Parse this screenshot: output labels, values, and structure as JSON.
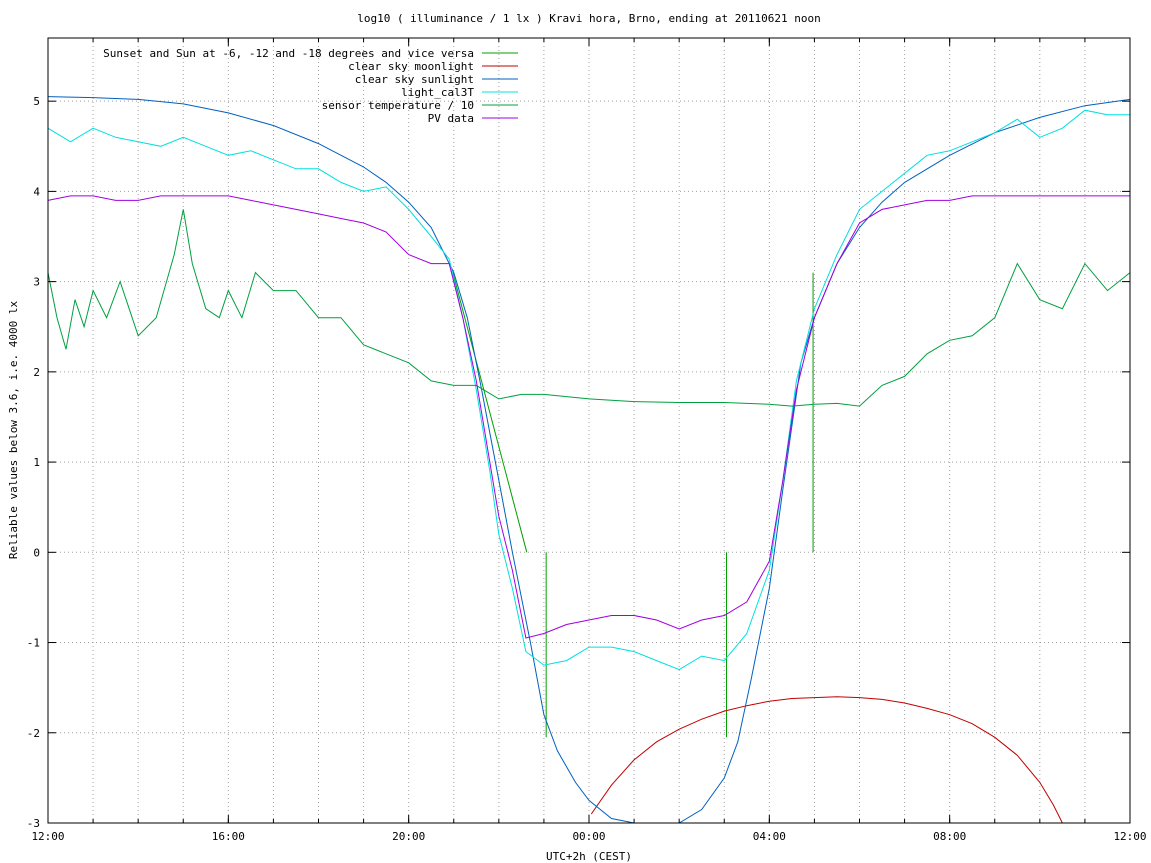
{
  "chart_data": {
    "type": "line",
    "title": "log10 ( illuminance / 1 lx ) Kravi hora, Brno, ending at 20110621 noon",
    "xlabel": "UTC+2h (CEST)",
    "ylabel": "Reliable values below 3.6, i.e. 4000 lx",
    "x_unit": "hours",
    "xlim": [
      12,
      36
    ],
    "ylim": [
      -3,
      5.7
    ],
    "x_tick_values": [
      12,
      16,
      20,
      24,
      28,
      32,
      36
    ],
    "x_tick_labels": [
      "12:00",
      "16:00",
      "20:00",
      "00:00",
      "04:00",
      "08:00",
      "12:00"
    ],
    "x_minor_step": 1,
    "y_ticks": [
      -3,
      -2,
      -1,
      0,
      1,
      2,
      3,
      4,
      5
    ],
    "grid": true,
    "legend_position": "top-left",
    "series": [
      {
        "name": "Sunset and Sun at -6, -12 and -18 degrees and vice versa",
        "color": "#00a000",
        "style": "impulses",
        "points": [
          [
            20.98,
            3.1
          ],
          [
            22.62,
            0.0
          ],
          [
            23.05,
            -2.05
          ],
          [
            23.05,
            0.0
          ],
          [
            27.05,
            -2.05
          ],
          [
            27.05,
            0.0
          ],
          [
            28.97,
            3.1
          ],
          [
            28.97,
            0.0
          ]
        ]
      },
      {
        "name": "clear sky moonlight",
        "color": "#c00000",
        "points": [
          [
            24.05,
            -2.9
          ],
          [
            24.5,
            -2.58
          ],
          [
            25.0,
            -2.3
          ],
          [
            25.5,
            -2.1
          ],
          [
            26.0,
            -1.96
          ],
          [
            26.5,
            -1.85
          ],
          [
            27.0,
            -1.76
          ],
          [
            27.5,
            -1.7
          ],
          [
            28.0,
            -1.65
          ],
          [
            28.5,
            -1.62
          ],
          [
            29.0,
            -1.61
          ],
          [
            29.5,
            -1.6
          ],
          [
            30.0,
            -1.61
          ],
          [
            30.5,
            -1.63
          ],
          [
            31.0,
            -1.67
          ],
          [
            31.5,
            -1.73
          ],
          [
            32.0,
            -1.8
          ],
          [
            32.5,
            -1.9
          ],
          [
            33.0,
            -2.05
          ],
          [
            33.5,
            -2.25
          ],
          [
            34.0,
            -2.55
          ],
          [
            34.3,
            -2.8
          ],
          [
            34.5,
            -3.0
          ]
        ]
      },
      {
        "name": "clear sky sunlight",
        "color": "#0060c0",
        "points": [
          [
            12.0,
            5.05
          ],
          [
            13.0,
            5.04
          ],
          [
            14.0,
            5.02
          ],
          [
            15.0,
            4.97
          ],
          [
            16.0,
            4.87
          ],
          [
            17.0,
            4.73
          ],
          [
            18.0,
            4.53
          ],
          [
            19.0,
            4.27
          ],
          [
            19.5,
            4.1
          ],
          [
            20.0,
            3.88
          ],
          [
            20.5,
            3.6
          ],
          [
            21.0,
            3.1
          ],
          [
            21.3,
            2.6
          ],
          [
            21.6,
            1.85
          ],
          [
            22.0,
            0.8
          ],
          [
            22.3,
            0.0
          ],
          [
            22.7,
            -1.0
          ],
          [
            23.0,
            -1.8
          ],
          [
            23.3,
            -2.2
          ],
          [
            23.7,
            -2.55
          ],
          [
            24.0,
            -2.75
          ],
          [
            24.5,
            -2.95
          ],
          [
            25.0,
            -3.1
          ],
          [
            25.5,
            -3.12
          ],
          [
            26.0,
            -3.05
          ],
          [
            26.5,
            -2.85
          ],
          [
            27.0,
            -2.5
          ],
          [
            27.3,
            -2.1
          ],
          [
            27.6,
            -1.4
          ],
          [
            28.0,
            -0.4
          ],
          [
            28.3,
            0.7
          ],
          [
            28.7,
            2.1
          ],
          [
            29.0,
            2.6
          ],
          [
            29.5,
            3.2
          ],
          [
            30.0,
            3.6
          ],
          [
            30.5,
            3.88
          ],
          [
            31.0,
            4.1
          ],
          [
            32.0,
            4.4
          ],
          [
            33.0,
            4.65
          ],
          [
            34.0,
            4.82
          ],
          [
            35.0,
            4.95
          ],
          [
            36.0,
            5.02
          ]
        ]
      },
      {
        "name": "light_cal3T",
        "color": "#00e0e0",
        "points": [
          [
            12.0,
            4.7
          ],
          [
            12.5,
            4.55
          ],
          [
            13.0,
            4.7
          ],
          [
            13.5,
            4.6
          ],
          [
            14.0,
            4.55
          ],
          [
            14.5,
            4.5
          ],
          [
            15.0,
            4.6
          ],
          [
            15.5,
            4.5
          ],
          [
            16.0,
            4.4
          ],
          [
            16.5,
            4.45
          ],
          [
            17.0,
            4.35
          ],
          [
            17.5,
            4.25
          ],
          [
            18.0,
            4.25
          ],
          [
            18.5,
            4.1
          ],
          [
            19.0,
            4.0
          ],
          [
            19.5,
            4.05
          ],
          [
            20.0,
            3.8
          ],
          [
            20.5,
            3.5
          ],
          [
            20.9,
            3.25
          ],
          [
            21.2,
            2.6
          ],
          [
            21.5,
            1.8
          ],
          [
            21.8,
            0.9
          ],
          [
            22.0,
            0.2
          ],
          [
            22.3,
            -0.4
          ],
          [
            22.6,
            -1.1
          ],
          [
            23.0,
            -1.25
          ],
          [
            23.5,
            -1.2
          ],
          [
            24.0,
            -1.05
          ],
          [
            24.5,
            -1.05
          ],
          [
            25.0,
            -1.1
          ],
          [
            25.5,
            -1.2
          ],
          [
            26.0,
            -1.3
          ],
          [
            26.5,
            -1.15
          ],
          [
            27.0,
            -1.2
          ],
          [
            27.5,
            -0.9
          ],
          [
            28.0,
            -0.2
          ],
          [
            28.3,
            0.8
          ],
          [
            28.6,
            1.9
          ],
          [
            29.0,
            2.7
          ],
          [
            29.5,
            3.3
          ],
          [
            30.0,
            3.8
          ],
          [
            30.5,
            4.0
          ],
          [
            31.0,
            4.2
          ],
          [
            31.5,
            4.4
          ],
          [
            32.0,
            4.45
          ],
          [
            32.5,
            4.55
          ],
          [
            33.0,
            4.65
          ],
          [
            33.5,
            4.8
          ],
          [
            34.0,
            4.6
          ],
          [
            34.5,
            4.7
          ],
          [
            35.0,
            4.9
          ],
          [
            35.5,
            4.85
          ],
          [
            36.0,
            4.85
          ]
        ]
      },
      {
        "name": "sensor temperature / 10",
        "color": "#00a040",
        "points": [
          [
            12.0,
            3.1
          ],
          [
            12.2,
            2.6
          ],
          [
            12.4,
            2.25
          ],
          [
            12.6,
            2.8
          ],
          [
            12.8,
            2.5
          ],
          [
            13.0,
            2.9
          ],
          [
            13.3,
            2.6
          ],
          [
            13.6,
            3.0
          ],
          [
            14.0,
            2.4
          ],
          [
            14.4,
            2.6
          ],
          [
            14.8,
            3.3
          ],
          [
            15.0,
            3.8
          ],
          [
            15.2,
            3.2
          ],
          [
            15.5,
            2.7
          ],
          [
            15.8,
            2.6
          ],
          [
            16.0,
            2.9
          ],
          [
            16.3,
            2.6
          ],
          [
            16.6,
            3.1
          ],
          [
            17.0,
            2.9
          ],
          [
            17.5,
            2.9
          ],
          [
            18.0,
            2.6
          ],
          [
            18.5,
            2.6
          ],
          [
            19.0,
            2.3
          ],
          [
            19.5,
            2.2
          ],
          [
            20.0,
            2.1
          ],
          [
            20.5,
            1.9
          ],
          [
            21.0,
            1.85
          ],
          [
            21.5,
            1.85
          ],
          [
            22.0,
            1.7
          ],
          [
            22.5,
            1.75
          ],
          [
            23.0,
            1.75
          ],
          [
            24.0,
            1.7
          ],
          [
            25.0,
            1.67
          ],
          [
            26.0,
            1.66
          ],
          [
            27.0,
            1.66
          ],
          [
            28.0,
            1.64
          ],
          [
            28.5,
            1.62
          ],
          [
            29.0,
            1.64
          ],
          [
            29.5,
            1.65
          ],
          [
            30.0,
            1.62
          ],
          [
            30.5,
            1.85
          ],
          [
            31.0,
            1.95
          ],
          [
            31.5,
            2.2
          ],
          [
            32.0,
            2.35
          ],
          [
            32.5,
            2.4
          ],
          [
            33.0,
            2.6
          ],
          [
            33.5,
            3.2
          ],
          [
            34.0,
            2.8
          ],
          [
            34.5,
            2.7
          ],
          [
            35.0,
            3.2
          ],
          [
            35.5,
            2.9
          ],
          [
            36.0,
            3.1
          ]
        ]
      },
      {
        "name": "PV data",
        "color": "#a000e0",
        "points": [
          [
            12.0,
            3.9
          ],
          [
            12.5,
            3.95
          ],
          [
            13.0,
            3.95
          ],
          [
            13.5,
            3.9
          ],
          [
            14.0,
            3.9
          ],
          [
            14.5,
            3.95
          ],
          [
            15.0,
            3.95
          ],
          [
            15.5,
            3.95
          ],
          [
            16.0,
            3.95
          ],
          [
            16.5,
            3.9
          ],
          [
            17.0,
            3.85
          ],
          [
            17.5,
            3.8
          ],
          [
            18.0,
            3.75
          ],
          [
            18.5,
            3.7
          ],
          [
            19.0,
            3.65
          ],
          [
            19.5,
            3.55
          ],
          [
            20.0,
            3.3
          ],
          [
            20.5,
            3.2
          ],
          [
            20.9,
            3.2
          ],
          [
            21.2,
            2.6
          ],
          [
            21.5,
            1.9
          ],
          [
            21.8,
            1.0
          ],
          [
            22.0,
            0.4
          ],
          [
            22.3,
            -0.2
          ],
          [
            22.6,
            -0.95
          ],
          [
            23.0,
            -0.9
          ],
          [
            23.5,
            -0.8
          ],
          [
            24.0,
            -0.75
          ],
          [
            24.5,
            -0.7
          ],
          [
            25.0,
            -0.7
          ],
          [
            25.5,
            -0.75
          ],
          [
            26.0,
            -0.85
          ],
          [
            26.5,
            -0.75
          ],
          [
            27.0,
            -0.7
          ],
          [
            27.5,
            -0.55
          ],
          [
            28.0,
            -0.1
          ],
          [
            28.3,
            0.8
          ],
          [
            28.6,
            1.8
          ],
          [
            29.0,
            2.6
          ],
          [
            29.5,
            3.2
          ],
          [
            30.0,
            3.65
          ],
          [
            30.5,
            3.8
          ],
          [
            31.0,
            3.85
          ],
          [
            31.5,
            3.9
          ],
          [
            32.0,
            3.9
          ],
          [
            32.5,
            3.95
          ],
          [
            33.0,
            3.95
          ],
          [
            33.5,
            3.95
          ],
          [
            34.0,
            3.95
          ],
          [
            34.5,
            3.95
          ],
          [
            35.0,
            3.95
          ],
          [
            35.5,
            3.95
          ],
          [
            36.0,
            3.95
          ]
        ]
      }
    ]
  }
}
